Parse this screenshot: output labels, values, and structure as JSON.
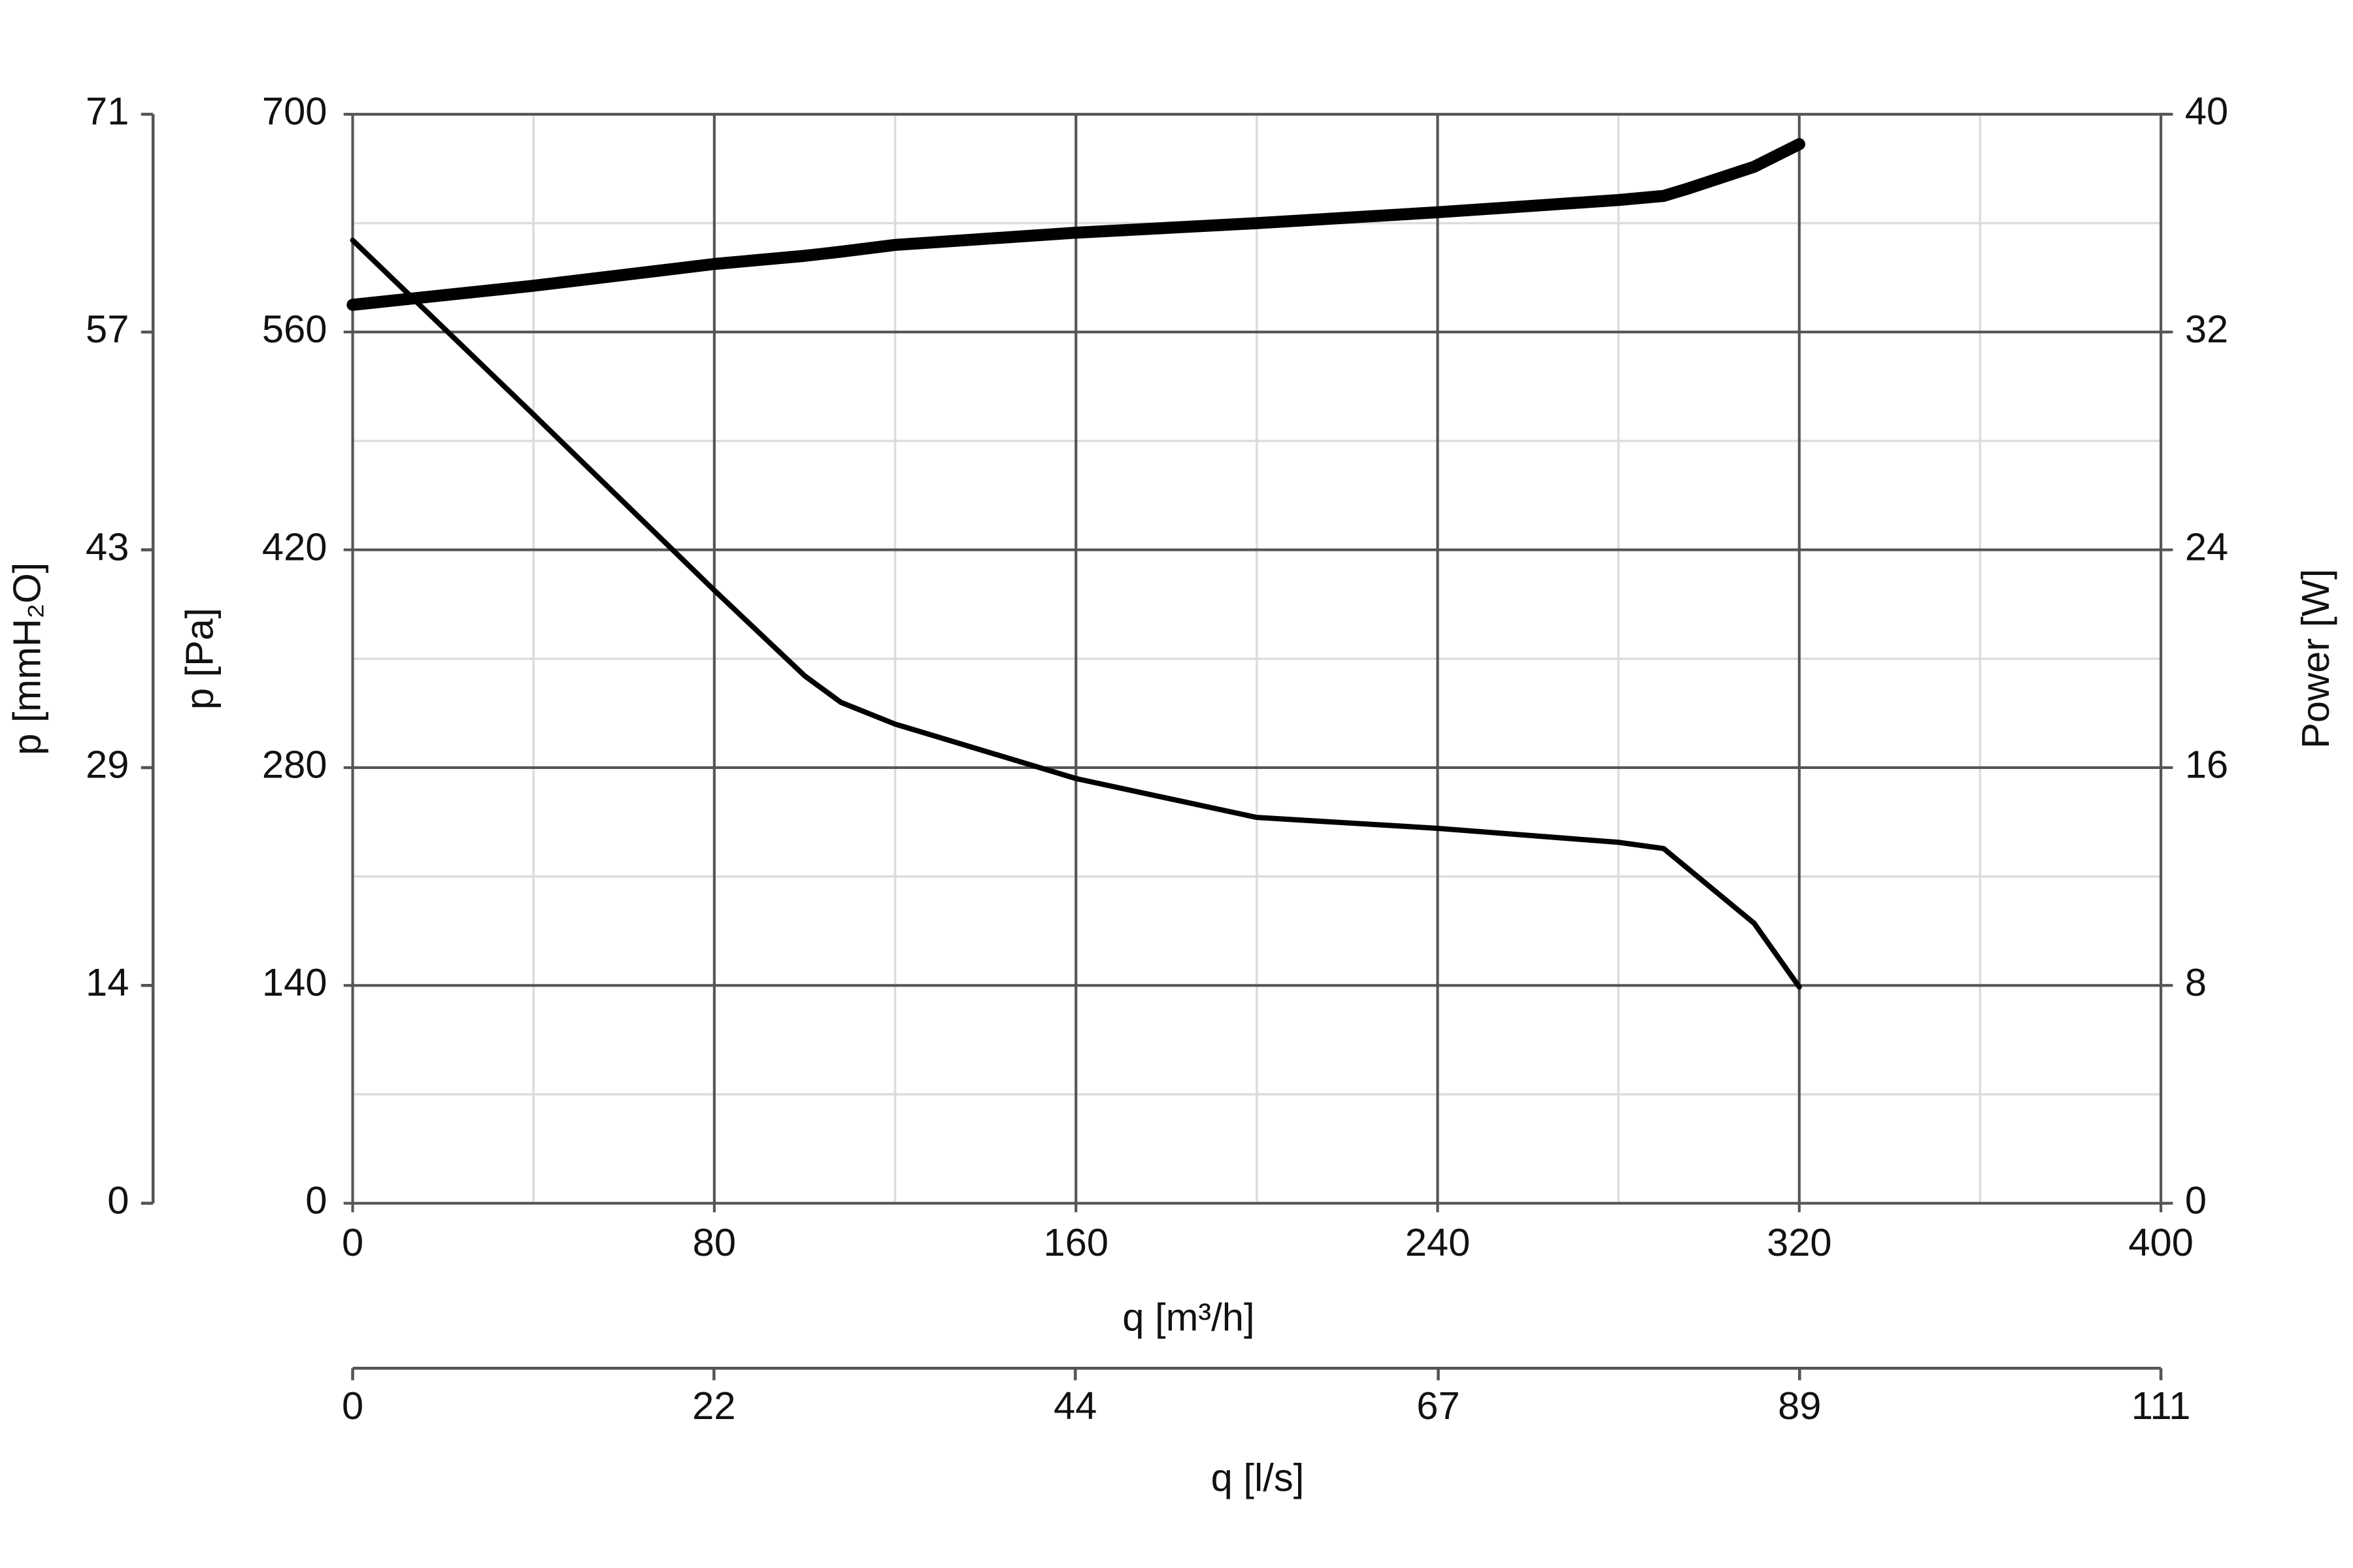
{
  "chart_data": {
    "type": "line",
    "xlabel": "q [m³/h]",
    "ylabel": "p [Pa]",
    "y2label": "Power [W]",
    "x2label": "q [l/s]",
    "y3label": "p [mmH₂O]",
    "xlim": [
      0,
      400
    ],
    "xticks": [
      0,
      80,
      160,
      240,
      320,
      400
    ],
    "x_minor_ticks": [
      40,
      120,
      200,
      280,
      360
    ],
    "ylim": [
      0,
      700
    ],
    "yticks": [
      0,
      140,
      280,
      420,
      560,
      700
    ],
    "y_minor_ticks": [
      70,
      210,
      350,
      490,
      630
    ],
    "y2lim": [
      0,
      40
    ],
    "y2ticks": [
      0,
      8,
      16,
      24,
      32,
      40
    ],
    "x2lim": [
      0,
      111.1
    ],
    "x2ticks": [
      0,
      {
        "value": 22.2,
        "label": "22"
      },
      {
        "value": 44.4,
        "label": "44"
      },
      {
        "value": 66.7,
        "label": "67"
      },
      {
        "value": 88.9,
        "label": "89"
      },
      {
        "value": 111.1,
        "label": "111"
      }
    ],
    "y3lim": [
      0,
      71.35
    ],
    "y3ticks": [
      0,
      {
        "value": 14.27,
        "label": "14"
      },
      {
        "value": 28.54,
        "label": "29"
      },
      {
        "value": 42.81,
        "label": "43"
      },
      {
        "value": 57.08,
        "label": "57"
      },
      {
        "value": 71.35,
        "label": "71"
      }
    ],
    "grid": true,
    "x": [
      0,
      40,
      80,
      100,
      108,
      120,
      160,
      200,
      240,
      280,
      290,
      295,
      310,
      320
    ],
    "series": [
      {
        "color": "#000000",
        "axis": "y",
        "values": [
          619,
          507,
          394,
          339,
          322,
          308,
          273,
          248,
          241,
          232,
          228,
          216,
          180,
          139
        ]
      },
      {
        "color": "#000000",
        "axis": "y2",
        "values": [
          33.0,
          33.7,
          34.5,
          34.8,
          34.95,
          35.2,
          35.65,
          36.0,
          36.4,
          36.85,
          37.0,
          37.25,
          38.07,
          38.9
        ]
      }
    ]
  }
}
